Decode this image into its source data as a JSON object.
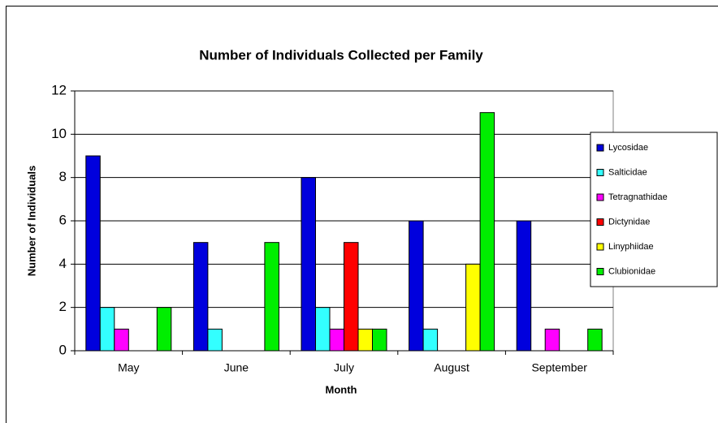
{
  "chart_data": {
    "type": "bar",
    "title": "Number of Individuals Collected per Family",
    "x_label": "Month",
    "y_label": "Number of Individuals",
    "categories": [
      "May",
      "June",
      "July",
      "August",
      "September"
    ],
    "series": [
      {
        "name": "Lycosidae",
        "color": "#0000dd",
        "values": [
          9,
          5,
          8,
          6,
          6
        ]
      },
      {
        "name": "Salticidae",
        "color": "#33ffff",
        "values": [
          2,
          1,
          2,
          1,
          0
        ]
      },
      {
        "name": "Tetragnathidae",
        "color": "#ff00ff",
        "values": [
          1,
          0,
          1,
          0,
          1
        ]
      },
      {
        "name": "Dictynidae",
        "color": "#ff0000",
        "values": [
          0,
          0,
          5,
          0,
          0
        ]
      },
      {
        "name": "Linyphiidae",
        "color": "#ffff00",
        "values": [
          0,
          0,
          1,
          4,
          0
        ]
      },
      {
        "name": "Clubionidae",
        "color": "#00ee00",
        "values": [
          2,
          5,
          1,
          11,
          1
        ]
      }
    ],
    "ylim": [
      0,
      12
    ],
    "yticks": [
      0,
      2,
      4,
      6,
      8,
      10,
      12
    ],
    "grid": true,
    "legend": "right"
  }
}
